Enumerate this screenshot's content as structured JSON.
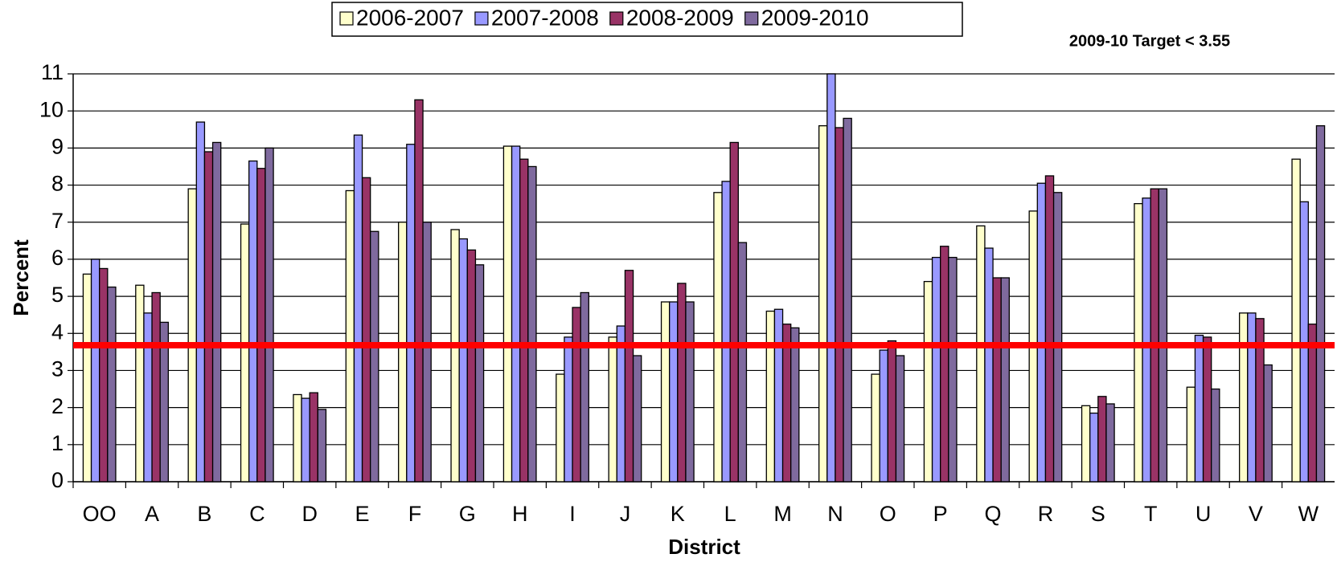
{
  "chart_data": {
    "type": "bar",
    "annotation": "2009-10 Target < 3.55",
    "x_label": "District",
    "y_label": "Percent",
    "categories": [
      "OO",
      "A",
      "B",
      "C",
      "D",
      "E",
      "F",
      "G",
      "H",
      "I",
      "J",
      "K",
      "L",
      "M",
      "N",
      "O",
      "P",
      "Q",
      "R",
      "S",
      "T",
      "U",
      "V",
      "W"
    ],
    "series": [
      {
        "name": "2006-2007",
        "color": "#ffffcc",
        "values": [
          5.6,
          5.3,
          7.9,
          6.95,
          2.35,
          7.85,
          7.0,
          6.8,
          9.05,
          2.9,
          3.9,
          4.85,
          7.8,
          4.6,
          9.6,
          2.9,
          5.4,
          6.9,
          7.3,
          2.05,
          7.5,
          2.55,
          4.55,
          8.7
        ]
      },
      {
        "name": "2007-2008",
        "color": "#9999ff",
        "values": [
          6.0,
          4.55,
          9.7,
          8.65,
          2.25,
          9.35,
          9.1,
          6.55,
          9.05,
          3.9,
          4.2,
          4.85,
          8.1,
          4.65,
          11,
          3.55,
          6.05,
          6.3,
          8.05,
          1.85,
          7.65,
          3.95,
          4.55,
          7.55
        ]
      },
      {
        "name": "2008-2009",
        "color": "#993366",
        "values": [
          5.75,
          5.1,
          8.9,
          8.45,
          2.4,
          8.2,
          10.3,
          6.25,
          8.7,
          4.7,
          5.7,
          5.35,
          9.15,
          4.25,
          9.55,
          3.8,
          6.35,
          5.5,
          8.25,
          2.3,
          7.9,
          3.9,
          4.4,
          4.25
        ]
      },
      {
        "name": "2009-2010",
        "color": "#7f6a9e",
        "values": [
          5.25,
          4.3,
          9.15,
          9.0,
          1.95,
          6.75,
          7.0,
          5.85,
          8.5,
          5.1,
          3.4,
          4.85,
          6.45,
          4.15,
          9.8,
          3.4,
          6.05,
          5.5,
          7.8,
          2.1,
          7.9,
          2.5,
          3.15,
          9.6
        ]
      }
    ],
    "reference_line": {
      "value": 3.68,
      "color": "#ff0000"
    },
    "ylim": [
      0,
      11
    ],
    "yticks": [
      0,
      1,
      2,
      3,
      4,
      5,
      6,
      7,
      8,
      9,
      10,
      11
    ],
    "grid": true
  }
}
